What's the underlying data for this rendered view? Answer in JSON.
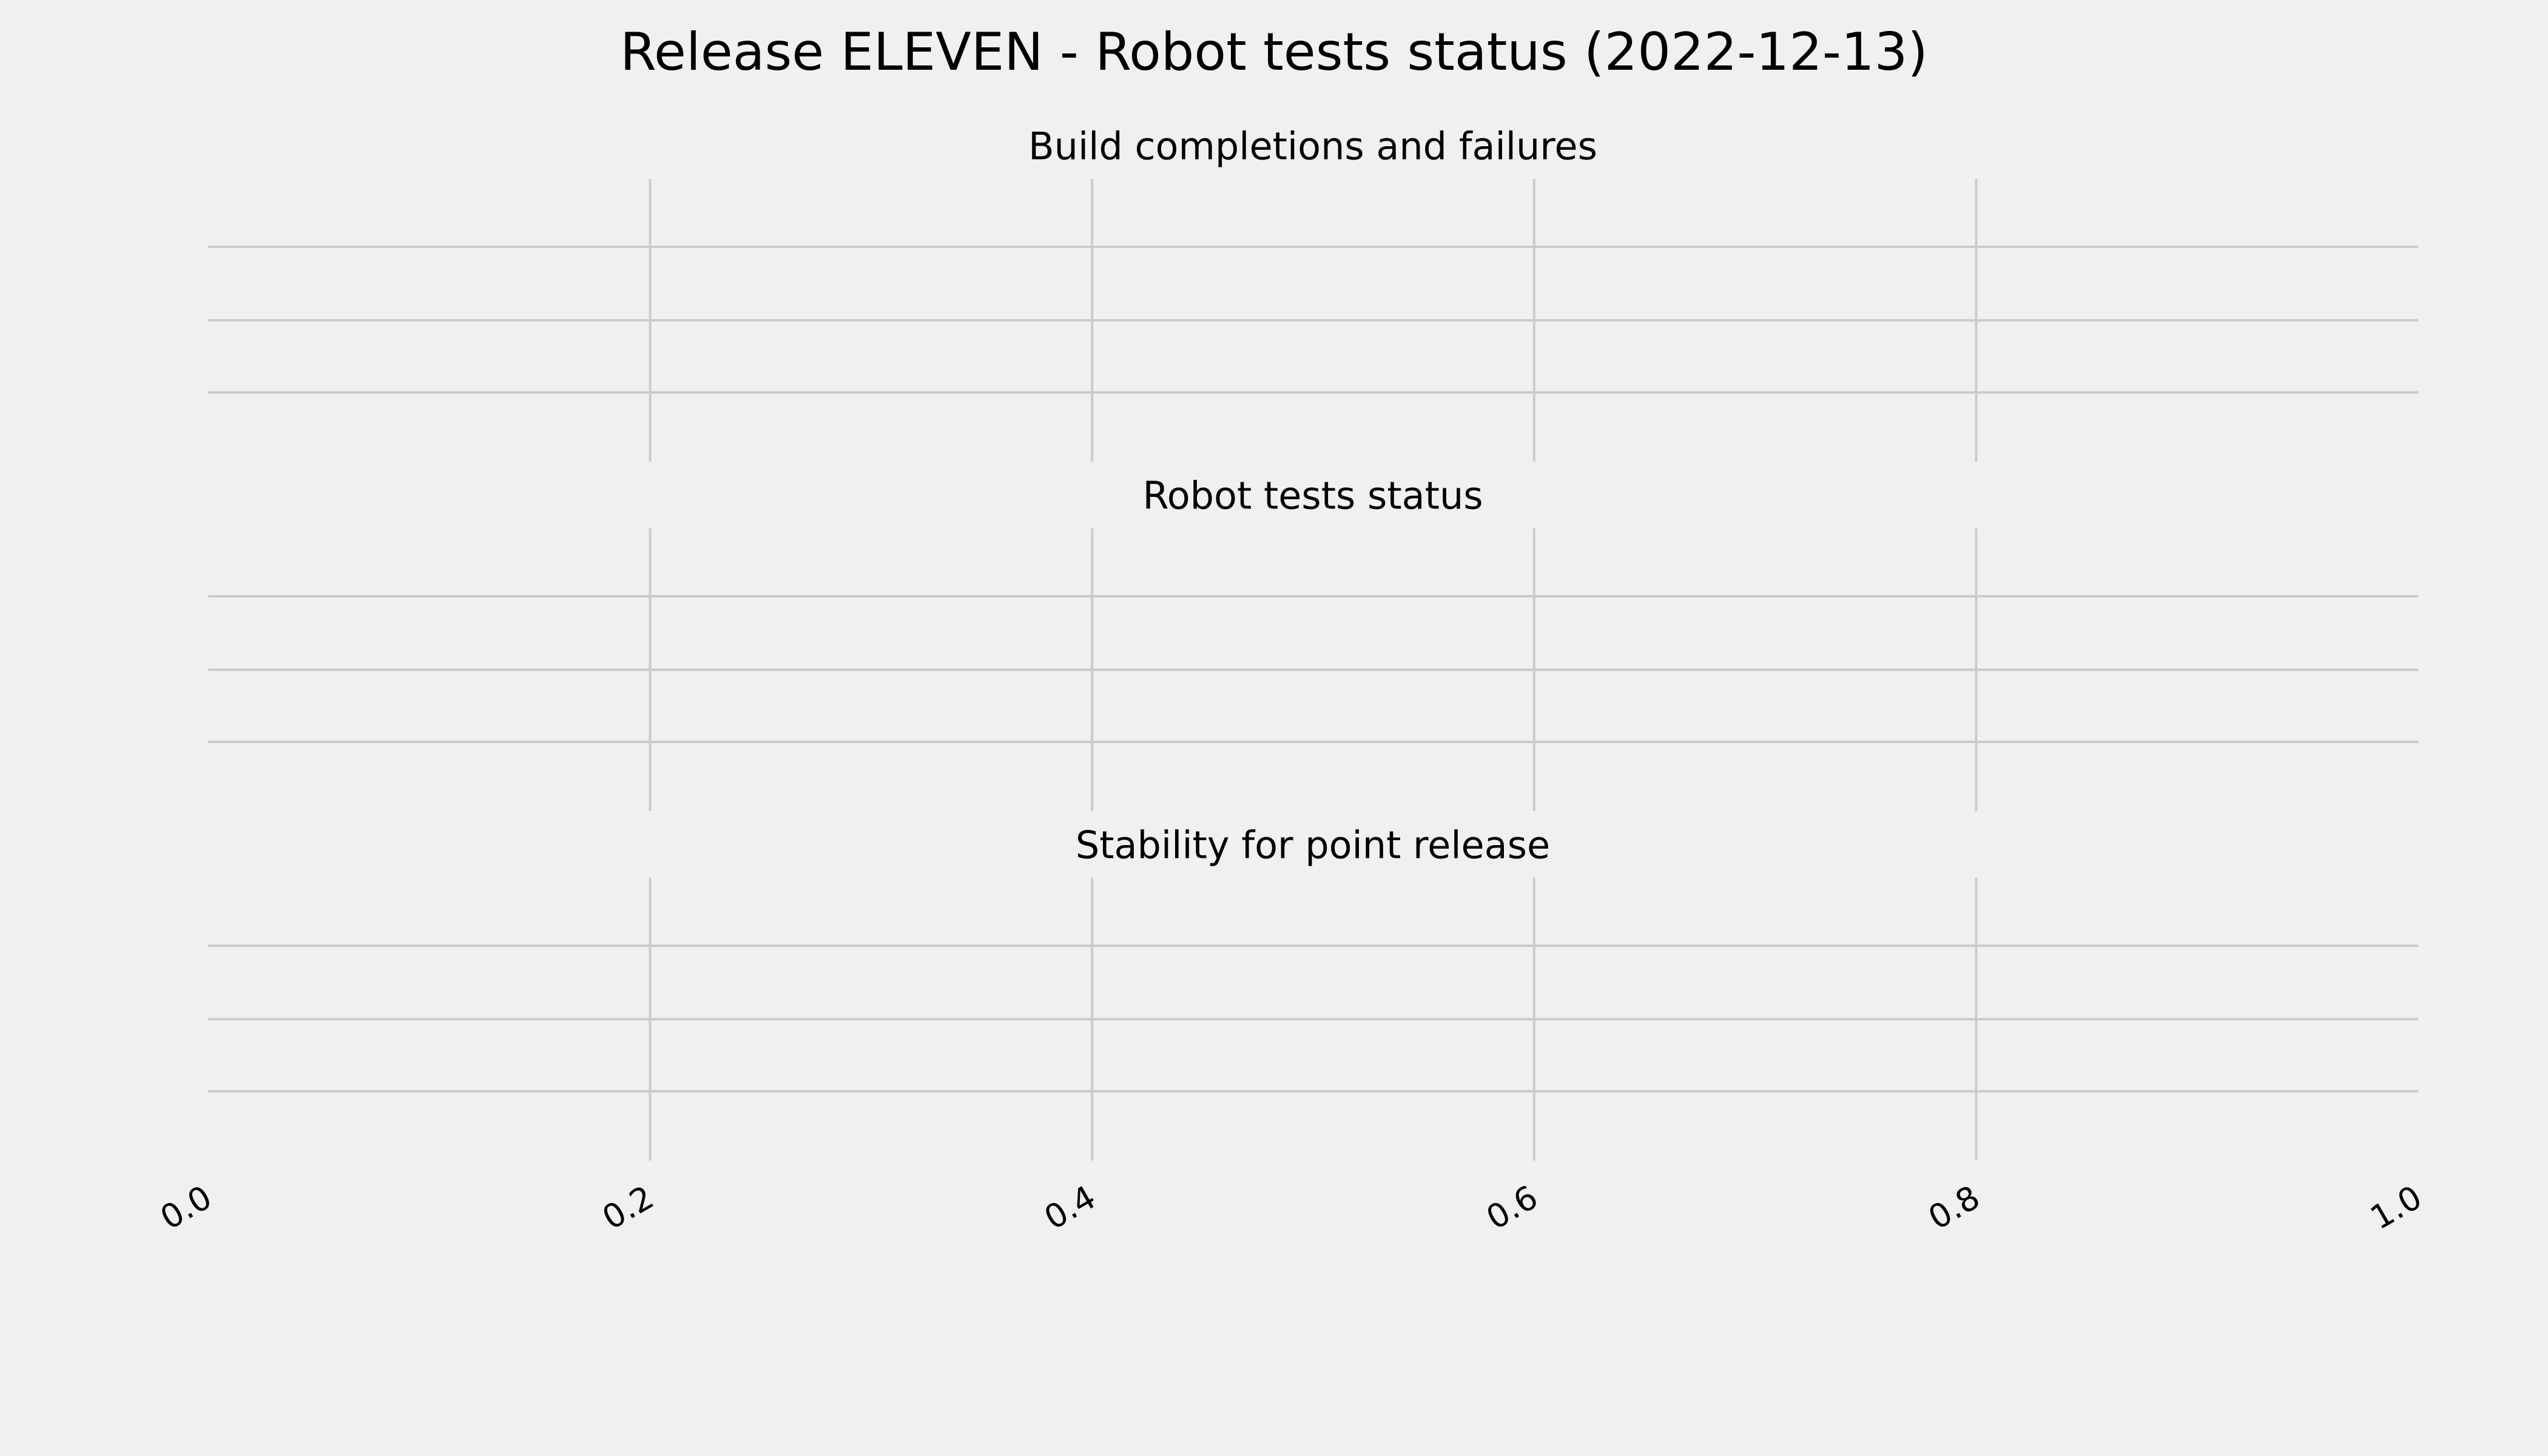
{
  "title": "Release ELEVEN - Robot tests status (2022-12-13)",
  "colors": {
    "background": "#f0f0f0",
    "grid": "#cbcbcb",
    "text": "#000000"
  },
  "chart_data": [
    {
      "type": "line",
      "title": "Build completions and failures",
      "series": [],
      "xlim": [
        0.0,
        1.0
      ],
      "grid": true,
      "show_x_ticklabels": false,
      "show_y_ticklabels": false
    },
    {
      "type": "line",
      "title": "Robot tests status",
      "series": [],
      "xlim": [
        0.0,
        1.0
      ],
      "grid": true,
      "show_x_ticklabels": false,
      "show_y_ticklabels": false
    },
    {
      "type": "line",
      "title": "Stability for point release",
      "series": [],
      "xlim": [
        0.0,
        1.0
      ],
      "grid": true,
      "show_x_ticklabels": true,
      "show_y_ticklabels": false,
      "xticks": [
        "0.0",
        "0.2",
        "0.4",
        "0.6",
        "0.8",
        "1.0"
      ]
    }
  ]
}
